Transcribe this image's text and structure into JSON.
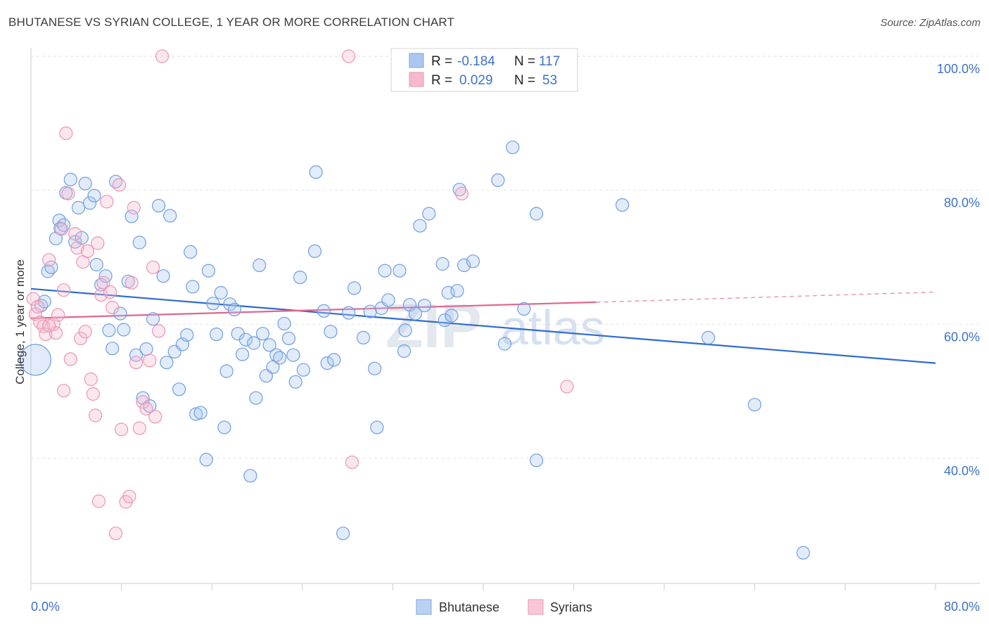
{
  "title": "BHUTANESE VS SYRIAN COLLEGE, 1 YEAR OR MORE CORRELATION CHART",
  "source": "Source: ZipAtlas.com",
  "watermark": {
    "zip": "ZIP",
    "atlas": "atlas"
  },
  "legend_box": {
    "r_label": "R =",
    "n_label": "N =",
    "rows": [
      {
        "r": "-0.184",
        "n": "117",
        "color": "#aac7f0"
      },
      {
        "r": "0.029",
        "n": "53",
        "color": "#f5b9cd"
      }
    ]
  },
  "bottom_legend": [
    "Bhutanese",
    "Syrians"
  ],
  "chart_data": {
    "type": "scatter",
    "title": "BHUTANESE VS SYRIAN COLLEGE, 1 YEAR OR MORE CORRELATION CHART",
    "xlabel": "",
    "ylabel": "College, 1 year or more",
    "xlim": [
      0,
      80
    ],
    "ylim": [
      20,
      103
    ],
    "x_tick_labels": [
      "0.0%",
      "80.0%"
    ],
    "y_tick_labels": [
      "40.0%",
      "60.0%",
      "80.0%",
      "100.0%"
    ],
    "y_ticks": [
      40,
      60,
      80,
      100
    ],
    "grid": true,
    "legend_position": "top-center",
    "series": [
      {
        "name": "Bhutanese",
        "color": "#6f9fe0",
        "trend": {
          "x": [
            0,
            80
          ],
          "y": [
            65.3,
            54.2
          ]
        },
        "points": [
          [
            0.4,
            54.7
          ],
          [
            0.9,
            62.8
          ],
          [
            1.2,
            63.4
          ],
          [
            1.5,
            67.9
          ],
          [
            1.8,
            68.5
          ],
          [
            2.2,
            72.8
          ],
          [
            2.5,
            75.5
          ],
          [
            2.6,
            74.3
          ],
          [
            2.9,
            74.8
          ],
          [
            3.1,
            79.6
          ],
          [
            3.5,
            81.6
          ],
          [
            3.9,
            72.3
          ],
          [
            4.2,
            77.4
          ],
          [
            4.5,
            72.9
          ],
          [
            4.8,
            81.0
          ],
          [
            5.2,
            78.1
          ],
          [
            5.6,
            79.2
          ],
          [
            5.8,
            68.9
          ],
          [
            6.2,
            65.9
          ],
          [
            6.6,
            67.2
          ],
          [
            6.9,
            59.1
          ],
          [
            7.2,
            56.4
          ],
          [
            7.5,
            81.3
          ],
          [
            7.9,
            61.6
          ],
          [
            8.2,
            59.2
          ],
          [
            8.6,
            66.4
          ],
          [
            8.9,
            76.1
          ],
          [
            9.3,
            55.4
          ],
          [
            9.6,
            72.2
          ],
          [
            9.9,
            49.0
          ],
          [
            10.2,
            56.3
          ],
          [
            10.5,
            47.8
          ],
          [
            10.8,
            60.8
          ],
          [
            11.3,
            77.7
          ],
          [
            11.7,
            67.2
          ],
          [
            12.0,
            54.3
          ],
          [
            12.3,
            76.2
          ],
          [
            12.7,
            55.9
          ],
          [
            13.1,
            50.3
          ],
          [
            13.4,
            57.0
          ],
          [
            13.8,
            58.4
          ],
          [
            14.1,
            70.8
          ],
          [
            14.3,
            65.6
          ],
          [
            14.6,
            46.6
          ],
          [
            15.0,
            46.8
          ],
          [
            15.5,
            39.8
          ],
          [
            15.7,
            68.0
          ],
          [
            16.1,
            63.1
          ],
          [
            16.4,
            58.5
          ],
          [
            16.8,
            64.7
          ],
          [
            17.1,
            44.6
          ],
          [
            17.3,
            53.0
          ],
          [
            17.6,
            63.0
          ],
          [
            18.0,
            62.2
          ],
          [
            18.3,
            58.6
          ],
          [
            18.7,
            55.5
          ],
          [
            19.0,
            57.7
          ],
          [
            19.4,
            37.4
          ],
          [
            19.7,
            57.2
          ],
          [
            19.9,
            49.0
          ],
          [
            20.2,
            68.8
          ],
          [
            20.5,
            58.6
          ],
          [
            20.8,
            52.3
          ],
          [
            21.1,
            56.9
          ],
          [
            21.4,
            53.6
          ],
          [
            21.7,
            55.4
          ],
          [
            22.0,
            55.0
          ],
          [
            22.4,
            60.1
          ],
          [
            22.8,
            57.9
          ],
          [
            23.2,
            55.4
          ],
          [
            23.4,
            51.4
          ],
          [
            23.8,
            67.0
          ],
          [
            24.1,
            53.2
          ],
          [
            25.1,
            70.9
          ],
          [
            25.2,
            82.7
          ],
          [
            25.9,
            62.0
          ],
          [
            26.2,
            54.2
          ],
          [
            26.5,
            58.9
          ],
          [
            26.8,
            54.7
          ],
          [
            27.6,
            28.8
          ],
          [
            28.1,
            61.7
          ],
          [
            28.6,
            65.4
          ],
          [
            29.4,
            58.0
          ],
          [
            30.0,
            61.9
          ],
          [
            30.4,
            53.4
          ],
          [
            30.6,
            44.6
          ],
          [
            31.0,
            62.4
          ],
          [
            31.3,
            68.0
          ],
          [
            31.6,
            63.6
          ],
          [
            32.6,
            68.0
          ],
          [
            33.1,
            59.1
          ],
          [
            33.0,
            56.0
          ],
          [
            33.5,
            62.9
          ],
          [
            34.0,
            61.6
          ],
          [
            34.4,
            74.7
          ],
          [
            34.8,
            62.8
          ],
          [
            35.2,
            76.5
          ],
          [
            36.4,
            69.0
          ],
          [
            36.6,
            60.6
          ],
          [
            36.9,
            64.7
          ],
          [
            37.2,
            61.3
          ],
          [
            37.7,
            65.0
          ],
          [
            37.9,
            80.1
          ],
          [
            38.3,
            68.8
          ],
          [
            39.1,
            69.4
          ],
          [
            41.3,
            81.5
          ],
          [
            41.9,
            57.1
          ],
          [
            42.6,
            86.4
          ],
          [
            43.6,
            62.3
          ],
          [
            44.7,
            76.5
          ],
          [
            44.7,
            39.7
          ],
          [
            52.3,
            77.8
          ],
          [
            59.9,
            58.0
          ],
          [
            64.0,
            48.0
          ],
          [
            68.3,
            25.9
          ]
        ]
      },
      {
        "name": "Syrians",
        "color": "#f2a1bd",
        "trend": {
          "x": [
            0,
            50
          ],
          "y": [
            60.9,
            63.3
          ]
        },
        "trend_extension": {
          "x": [
            50,
            80
          ],
          "y": [
            63.3,
            64.8
          ]
        },
        "points": [
          [
            0.2,
            63.8
          ],
          [
            0.4,
            61.5
          ],
          [
            0.6,
            62.6
          ],
          [
            0.8,
            60.3
          ],
          [
            1.1,
            59.7
          ],
          [
            1.3,
            58.5
          ],
          [
            1.6,
            69.6
          ],
          [
            2.0,
            60.0
          ],
          [
            2.2,
            58.7
          ],
          [
            2.4,
            61.4
          ],
          [
            2.7,
            74.2
          ],
          [
            2.9,
            50.1
          ],
          [
            3.1,
            88.5
          ],
          [
            3.3,
            79.5
          ],
          [
            3.5,
            54.8
          ],
          [
            3.9,
            73.5
          ],
          [
            4.1,
            71.4
          ],
          [
            4.4,
            57.9
          ],
          [
            4.6,
            69.3
          ],
          [
            4.8,
            58.9
          ],
          [
            5.0,
            70.9
          ],
          [
            5.3,
            51.8
          ],
          [
            5.5,
            49.6
          ],
          [
            5.7,
            46.4
          ],
          [
            5.9,
            72.1
          ],
          [
            6.2,
            64.4
          ],
          [
            6.4,
            66.2
          ],
          [
            6.7,
            78.3
          ],
          [
            7.0,
            64.8
          ],
          [
            7.2,
            62.5
          ],
          [
            7.5,
            28.8
          ],
          [
            7.8,
            80.8
          ],
          [
            8.0,
            44.3
          ],
          [
            8.4,
            33.5
          ],
          [
            8.7,
            34.3
          ],
          [
            8.9,
            66.2
          ],
          [
            9.1,
            77.4
          ],
          [
            9.3,
            54.3
          ],
          [
            9.6,
            44.5
          ],
          [
            9.9,
            48.4
          ],
          [
            10.2,
            47.4
          ],
          [
            10.5,
            54.6
          ],
          [
            10.8,
            68.5
          ],
          [
            11.0,
            46.2
          ],
          [
            11.3,
            59.0
          ],
          [
            11.6,
            100.0
          ],
          [
            28.1,
            100.0
          ],
          [
            28.4,
            39.4
          ],
          [
            38.1,
            79.5
          ],
          [
            47.4,
            50.7
          ],
          [
            1.6,
            59.8
          ],
          [
            6.0,
            33.6
          ],
          [
            2.9,
            65.1
          ]
        ]
      }
    ]
  }
}
